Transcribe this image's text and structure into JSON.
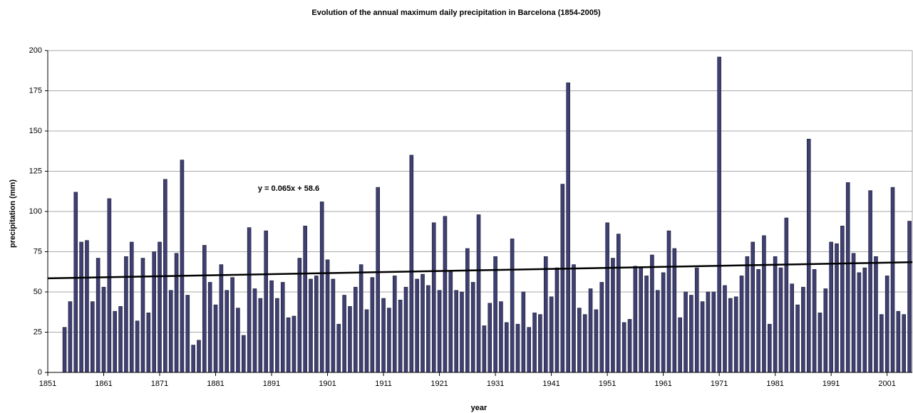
{
  "chart_data": {
    "type": "bar",
    "title": "Evolution of the annual maximum daily precipitation in Barcelona (1854-2005)",
    "x_label": "year",
    "y_label": "precipitation (mm)",
    "x": [
      1854,
      1855,
      1856,
      1857,
      1858,
      1859,
      1860,
      1861,
      1862,
      1863,
      1864,
      1865,
      1866,
      1867,
      1868,
      1869,
      1870,
      1871,
      1872,
      1873,
      1874,
      1875,
      1876,
      1877,
      1878,
      1879,
      1880,
      1881,
      1882,
      1883,
      1884,
      1885,
      1886,
      1887,
      1888,
      1889,
      1890,
      1891,
      1892,
      1893,
      1894,
      1895,
      1896,
      1897,
      1898,
      1899,
      1900,
      1901,
      1902,
      1903,
      1904,
      1905,
      1906,
      1907,
      1908,
      1909,
      1910,
      1911,
      1912,
      1913,
      1914,
      1915,
      1916,
      1917,
      1918,
      1919,
      1920,
      1921,
      1922,
      1923,
      1924,
      1925,
      1926,
      1927,
      1928,
      1929,
      1930,
      1931,
      1932,
      1933,
      1934,
      1935,
      1936,
      1937,
      1938,
      1939,
      1940,
      1941,
      1942,
      1943,
      1944,
      1945,
      1946,
      1947,
      1948,
      1949,
      1950,
      1951,
      1952,
      1953,
      1954,
      1955,
      1956,
      1957,
      1958,
      1959,
      1960,
      1961,
      1962,
      1963,
      1964,
      1965,
      1966,
      1967,
      1968,
      1969,
      1970,
      1971,
      1972,
      1973,
      1974,
      1975,
      1976,
      1977,
      1978,
      1979,
      1980,
      1981,
      1982,
      1983,
      1984,
      1985,
      1986,
      1987,
      1988,
      1989,
      1990,
      1991,
      1992,
      1993,
      1994,
      1995,
      1996,
      1997,
      1998,
      1999,
      2000,
      2001,
      2002,
      2003,
      2004,
      2005
    ],
    "values": [
      28,
      44,
      112,
      81,
      82,
      44,
      71,
      53,
      108,
      38,
      41,
      72,
      81,
      32,
      71,
      37,
      75,
      81,
      120,
      51,
      74,
      132,
      48,
      17,
      20,
      79,
      56,
      42,
      67,
      51,
      59,
      40,
      23,
      90,
      52,
      46,
      88,
      57,
      46,
      56,
      34,
      35,
      71,
      91,
      58,
      60,
      106,
      70,
      58,
      30,
      48,
      41,
      53,
      67,
      39,
      59,
      115,
      46,
      40,
      60,
      45,
      53,
      135,
      58,
      61,
      54,
      93,
      51,
      97,
      63,
      51,
      50,
      77,
      56,
      98,
      29,
      43,
      72,
      44,
      31,
      83,
      30,
      50,
      28,
      37,
      36,
      72,
      47,
      65,
      117,
      180,
      67,
      40,
      36,
      52,
      39,
      56,
      93,
      71,
      86,
      31,
      33,
      66,
      65,
      60,
      73,
      51,
      62,
      88,
      77,
      34,
      50,
      48,
      65,
      44,
      50,
      50,
      196,
      54,
      46,
      47,
      60,
      72,
      81,
      64,
      85,
      30,
      72,
      65,
      96,
      55,
      42,
      53,
      145,
      64,
      37,
      52,
      81,
      80,
      91,
      118,
      74,
      62,
      65,
      113,
      72,
      36,
      60,
      115,
      38,
      36,
      94
    ],
    "color": "#3f3f72",
    "trendline": {
      "label": "y = 0.065x + 58.6",
      "slope": 0.065,
      "intercept": 58.6,
      "index_origin": 1853,
      "color": "#000000"
    },
    "xlim": [
      1851,
      2005.5
    ],
    "xticks": [
      1851,
      1861,
      1871,
      1881,
      1891,
      1901,
      1911,
      1921,
      1931,
      1941,
      1951,
      1961,
      1971,
      1981,
      1991,
      2001
    ],
    "ylim": [
      0,
      200
    ],
    "yticks": [
      0,
      25,
      50,
      75,
      100,
      125,
      150,
      175,
      200
    ],
    "grid": true
  }
}
